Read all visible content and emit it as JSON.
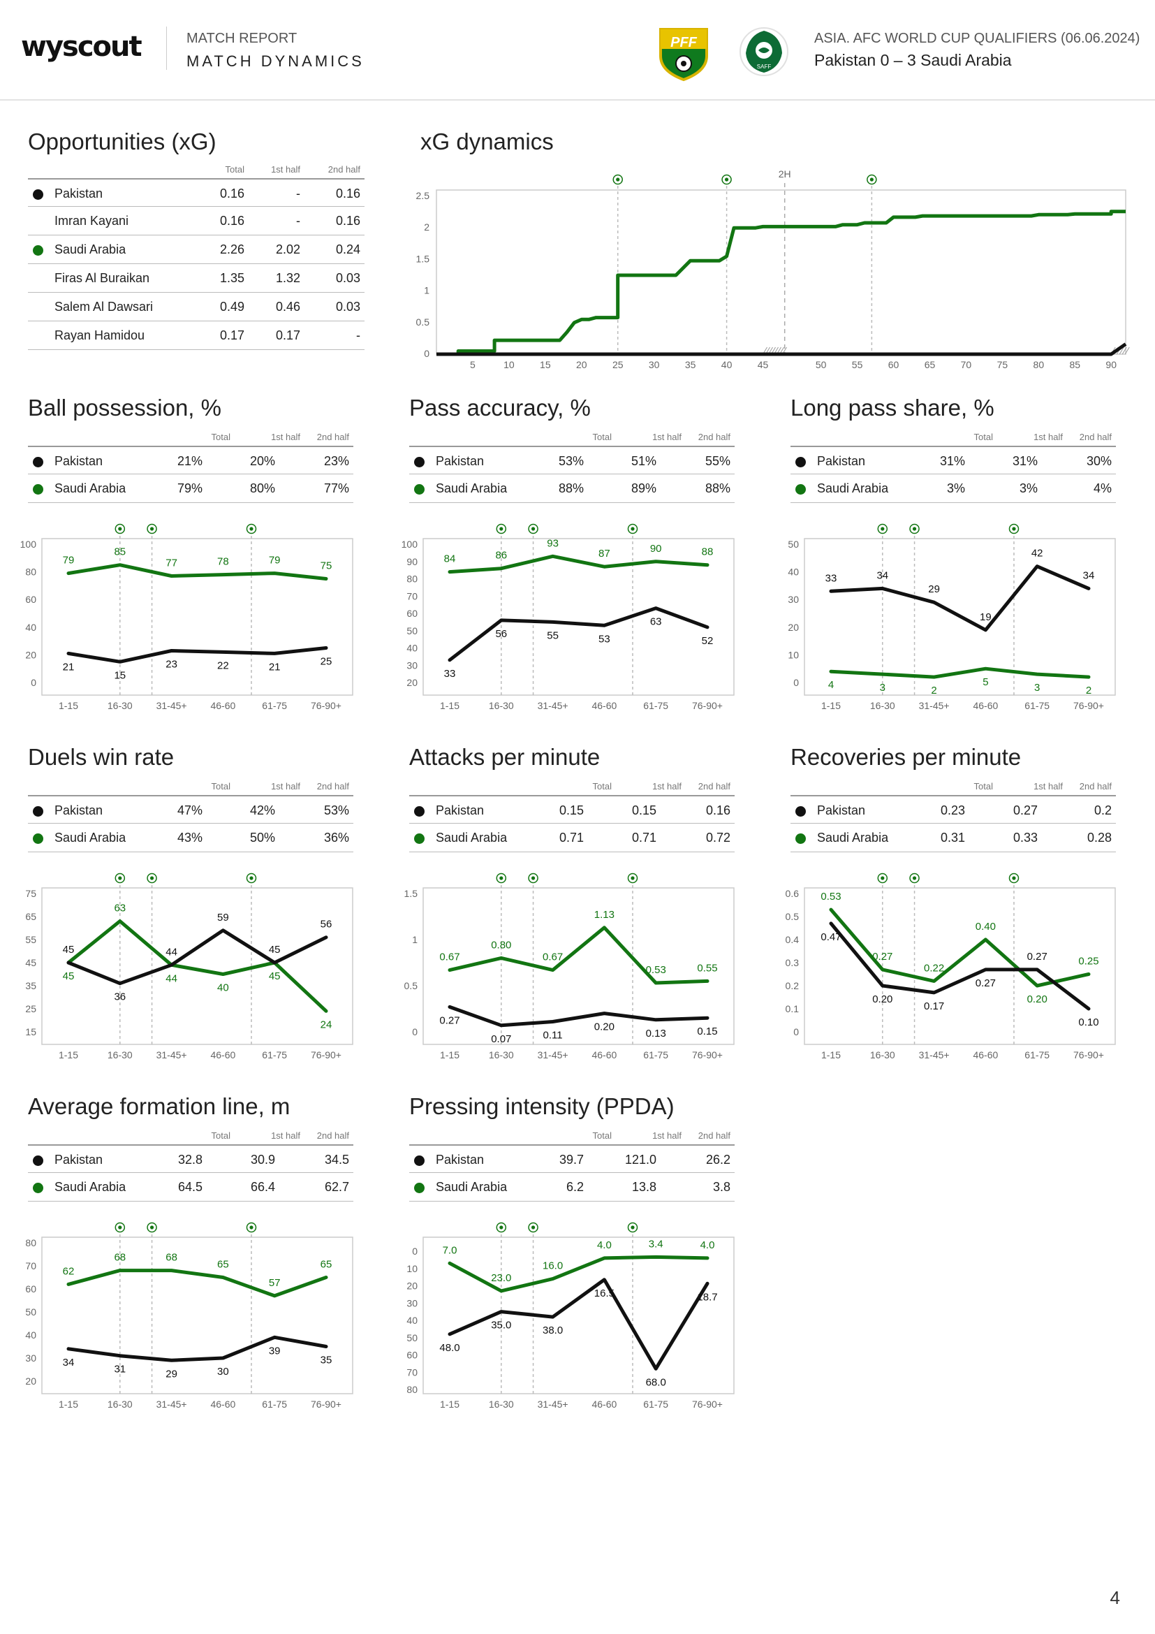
{
  "header": {
    "logo": "wyscout",
    "report_label": "MATCH REPORT",
    "report_title": "MATCH DYNAMICS",
    "competition": "ASIA. AFC WORLD CUP QUALIFIERS (06.06.2024)",
    "match": "Pakistan 0 – 3 Saudi Arabia",
    "home_crest_text": "PFF",
    "away_crest_text": "SAFF"
  },
  "colors": {
    "pakistan": "#111111",
    "saudi": "#127512",
    "grid": "#dddddd"
  },
  "page_number": "4",
  "columns": {
    "total": "Total",
    "first": "1st half",
    "second": "2nd half"
  },
  "xg_table": {
    "title": "Opportunities (xG)",
    "rows": [
      {
        "name": "Pakistan",
        "team": "pakistan",
        "total": "0.16",
        "first": "-",
        "second": "0.16"
      },
      {
        "name": "Imran Kayani",
        "team": "",
        "total": "0.16",
        "first": "-",
        "second": "0.16"
      },
      {
        "name": "Saudi Arabia",
        "team": "saudi",
        "total": "2.26",
        "first": "2.02",
        "second": "0.24"
      },
      {
        "name": "Firas Al Buraikan",
        "team": "",
        "total": "1.35",
        "first": "1.32",
        "second": "0.03"
      },
      {
        "name": "Salem Al Dawsari",
        "team": "",
        "total": "0.49",
        "first": "0.46",
        "second": "0.03"
      },
      {
        "name": "Rayan Hamidou",
        "team": "",
        "total": "0.17",
        "first": "0.17",
        "second": "-"
      }
    ]
  },
  "chart_data": [
    {
      "id": "xg_dynamics",
      "type": "line",
      "title": "xG dynamics",
      "half_marker": "2H",
      "y_ticks": [
        "0",
        "0.5",
        "1",
        "1.5",
        "2",
        "2.5"
      ],
      "ylim": [
        0,
        2.6
      ],
      "x_ticks_first": [
        "5",
        "10",
        "15",
        "20",
        "25",
        "30",
        "35",
        "40",
        "45"
      ],
      "x_ticks_second": [
        "50",
        "55",
        "60",
        "65",
        "70",
        "75",
        "80",
        "85",
        "90"
      ],
      "goal_minutes": [
        25,
        40,
        60
      ],
      "series": [
        {
          "name": "Saudi Arabia",
          "team": "saudi",
          "points": [
            [
              0,
              0
            ],
            [
              3,
              0
            ],
            [
              3,
              0.05
            ],
            [
              8,
              0.05
            ],
            [
              8,
              0.22
            ],
            [
              17,
              0.22
            ],
            [
              18,
              0.35
            ],
            [
              19,
              0.5
            ],
            [
              20,
              0.55
            ],
            [
              21,
              0.55
            ],
            [
              22,
              0.58
            ],
            [
              25,
              0.58
            ],
            [
              25,
              1.25
            ],
            [
              33,
              1.25
            ],
            [
              35,
              1.48
            ],
            [
              39,
              1.48
            ],
            [
              40,
              1.55
            ],
            [
              41,
              2.0
            ],
            [
              44,
              2.0
            ],
            [
              45,
              2.02
            ],
            [
              45,
              2.02
            ],
            [
              52,
              2.02
            ],
            [
              53,
              2.05
            ],
            [
              55,
              2.05
            ],
            [
              56,
              2.08
            ],
            [
              59,
              2.08
            ],
            [
              60,
              2.17
            ],
            [
              63,
              2.17
            ],
            [
              64,
              2.19
            ],
            [
              79,
              2.19
            ],
            [
              80,
              2.21
            ],
            [
              84,
              2.21
            ],
            [
              85,
              2.22
            ],
            [
              90,
              2.22
            ],
            [
              90,
              2.26
            ],
            [
              95,
              2.26
            ]
          ]
        },
        {
          "name": "Pakistan",
          "team": "pakistan",
          "points": [
            [
              0,
              0
            ],
            [
              90,
              0
            ],
            [
              92,
              0.16
            ],
            [
              95,
              0.16
            ]
          ]
        }
      ]
    },
    {
      "id": "possession",
      "type": "line",
      "title": "Ball possession, %",
      "categories": [
        "1-15",
        "16-30",
        "31-45+",
        "46-60",
        "61-75",
        "76-90+"
      ],
      "ylim": [
        0,
        100
      ],
      "y_ticks": [
        "0",
        "20",
        "40",
        "60",
        "80",
        "100"
      ],
      "goal_after": [
        1,
        2,
        4
      ],
      "series": [
        {
          "name": "Saudi Arabia",
          "team": "saudi",
          "values": [
            79,
            85,
            77,
            78,
            79,
            75
          ],
          "labels": [
            "79",
            "85",
            "77",
            "78",
            "79",
            "75"
          ],
          "label_pos": "above"
        },
        {
          "name": "Pakistan",
          "team": "pakistan",
          "values": [
            21,
            15,
            23,
            22,
            21,
            25
          ],
          "labels": [
            "21",
            "15",
            "23",
            "22",
            "21",
            "25"
          ],
          "label_pos": "below"
        }
      ]
    },
    {
      "id": "pass_accuracy",
      "type": "line",
      "title": "Pass accuracy, %",
      "categories": [
        "1-15",
        "16-30",
        "31-45+",
        "46-60",
        "61-75",
        "76-90+"
      ],
      "ylim": [
        20,
        100
      ],
      "y_ticks": [
        "20",
        "30",
        "40",
        "50",
        "60",
        "70",
        "80",
        "90",
        "100"
      ],
      "goal_after": [
        1,
        2,
        4
      ],
      "series": [
        {
          "name": "Saudi Arabia",
          "team": "saudi",
          "values": [
            84,
            86,
            93,
            87,
            90,
            88
          ],
          "labels": [
            "84",
            "86",
            "93",
            "87",
            "90",
            "88"
          ],
          "label_pos": "above"
        },
        {
          "name": "Pakistan",
          "team": "pakistan",
          "values": [
            33,
            56,
            55,
            53,
            63,
            52
          ],
          "labels": [
            "33",
            "56",
            "55",
            "53",
            "63",
            "52"
          ],
          "label_pos": "below"
        }
      ]
    },
    {
      "id": "long_pass",
      "type": "line",
      "title": "Long pass share, %",
      "categories": [
        "1-15",
        "16-30",
        "31-45+",
        "46-60",
        "61-75",
        "76-90+"
      ],
      "ylim": [
        0,
        50
      ],
      "y_ticks": [
        "0",
        "10",
        "20",
        "30",
        "40",
        "50"
      ],
      "goal_after": [
        1,
        2,
        4
      ],
      "series": [
        {
          "name": "Pakistan",
          "team": "pakistan",
          "values": [
            33,
            34,
            29,
            19,
            42,
            34
          ],
          "labels": [
            "33",
            "34",
            "29",
            "19",
            "42",
            "34"
          ],
          "label_pos": "above"
        },
        {
          "name": "Saudi Arabia",
          "team": "saudi",
          "values": [
            4,
            3,
            2,
            5,
            3,
            2
          ],
          "labels": [
            "4",
            "3",
            "2",
            "5",
            "3",
            "2"
          ],
          "label_pos": "below"
        }
      ]
    },
    {
      "id": "duels",
      "type": "line",
      "title": "Duels win rate",
      "categories": [
        "1-15",
        "16-30",
        "31-45+",
        "46-60",
        "61-75",
        "76-90+"
      ],
      "ylim": [
        15,
        75
      ],
      "y_ticks": [
        "15",
        "25",
        "35",
        "45",
        "55",
        "65",
        "75"
      ],
      "goal_after": [
        1,
        2,
        4
      ],
      "series": [
        {
          "name": "Saudi Arabia",
          "team": "saudi",
          "values": [
            45,
            63,
            44,
            40,
            45,
            24
          ],
          "labels": [
            "45",
            "63",
            "44",
            "40",
            "45",
            "24"
          ],
          "label_pos": "custom",
          "label_dirs": [
            "below",
            "above",
            "below",
            "below",
            "below",
            "below"
          ]
        },
        {
          "name": "Pakistan",
          "team": "pakistan",
          "values": [
            45,
            36,
            44,
            59,
            45,
            56
          ],
          "labels": [
            "45",
            "36",
            "44",
            "59",
            "45",
            "56"
          ],
          "label_pos": "custom",
          "label_dirs": [
            "above",
            "below",
            "above",
            "above",
            "above",
            "above"
          ]
        }
      ]
    },
    {
      "id": "attacks",
      "type": "line",
      "title": "Attacks per minute",
      "categories": [
        "1-15",
        "16-30",
        "31-45+",
        "46-60",
        "61-75",
        "76-90+"
      ],
      "ylim": [
        0,
        1.5
      ],
      "y_ticks": [
        "0",
        "0.5",
        "1",
        "1.5"
      ],
      "goal_after": [
        1,
        2,
        4
      ],
      "series": [
        {
          "name": "Saudi Arabia",
          "team": "saudi",
          "values": [
            0.67,
            0.8,
            0.67,
            1.13,
            0.53,
            0.55
          ],
          "labels": [
            "0.67",
            "0.80",
            "0.67",
            "1.13",
            "0.53",
            "0.55"
          ],
          "label_pos": "above"
        },
        {
          "name": "Pakistan",
          "team": "pakistan",
          "values": [
            0.27,
            0.07,
            0.11,
            0.2,
            0.13,
            0.15
          ],
          "labels": [
            "0.27",
            "0.07",
            "0.11",
            "0.20",
            "0.13",
            "0.15"
          ],
          "label_pos": "below"
        }
      ]
    },
    {
      "id": "recoveries",
      "type": "line",
      "title": "Recoveries per minute",
      "categories": [
        "1-15",
        "16-30",
        "31-45+",
        "46-60",
        "61-75",
        "76-90+"
      ],
      "ylim": [
        0,
        0.6
      ],
      "y_ticks": [
        "0",
        "0.1",
        "0.2",
        "0.3",
        "0.4",
        "0.5",
        "0.6"
      ],
      "goal_after": [
        1,
        2,
        4
      ],
      "series": [
        {
          "name": "Saudi Arabia",
          "team": "saudi",
          "values": [
            0.53,
            0.27,
            0.22,
            0.4,
            0.2,
            0.25
          ],
          "labels": [
            "0.53",
            "0.27",
            "0.22",
            "0.40",
            "0.20",
            "0.25"
          ],
          "label_pos": "custom",
          "label_dirs": [
            "above",
            "above",
            "above",
            "above",
            "below",
            "above"
          ]
        },
        {
          "name": "Pakistan",
          "team": "pakistan",
          "values": [
            0.47,
            0.2,
            0.17,
            0.27,
            0.27,
            0.1
          ],
          "labels": [
            "0.47",
            "0.20",
            "0.17",
            "0.27",
            "0.27",
            "0.10"
          ],
          "label_pos": "custom",
          "label_dirs": [
            "below",
            "below",
            "below",
            "below",
            "above",
            "below"
          ]
        }
      ]
    },
    {
      "id": "formation",
      "type": "line",
      "title": "Average formation line, m",
      "categories": [
        "1-15",
        "16-30",
        "31-45+",
        "46-60",
        "61-75",
        "76-90+"
      ],
      "ylim": [
        20,
        80
      ],
      "y_ticks": [
        "20",
        "30",
        "40",
        "50",
        "60",
        "70",
        "80"
      ],
      "goal_after": [
        1,
        2,
        4
      ],
      "series": [
        {
          "name": "Saudi Arabia",
          "team": "saudi",
          "values": [
            62,
            68,
            68,
            65,
            57,
            65
          ],
          "labels": [
            "62",
            "68",
            "68",
            "65",
            "57",
            "65"
          ],
          "label_pos": "above"
        },
        {
          "name": "Pakistan",
          "team": "pakistan",
          "values": [
            34,
            31,
            29,
            30,
            39,
            35
          ],
          "labels": [
            "34",
            "31",
            "29",
            "30",
            "39",
            "35"
          ],
          "label_pos": "below"
        }
      ]
    },
    {
      "id": "ppda",
      "type": "line",
      "title": "Pressing intensity (PPDA)",
      "inverted": true,
      "categories": [
        "1-15",
        "16-30",
        "31-45+",
        "46-60",
        "61-75",
        "76-90+"
      ],
      "ylim": [
        0,
        80
      ],
      "y_ticks": [
        "0",
        "10",
        "20",
        "30",
        "40",
        "50",
        "60",
        "70",
        "80"
      ],
      "goal_after": [
        1,
        2,
        4
      ],
      "series": [
        {
          "name": "Saudi Arabia",
          "team": "saudi",
          "values": [
            7.0,
            23.0,
            16.0,
            4.0,
            3.4,
            4.0
          ],
          "labels": [
            "7.0",
            "23.0",
            "16.0",
            "4.0",
            "3.4",
            "4.0"
          ],
          "label_pos": "above"
        },
        {
          "name": "Pakistan",
          "team": "pakistan",
          "values": [
            48.0,
            35.0,
            38.0,
            16.5,
            68.0,
            18.7
          ],
          "labels": [
            "48.0",
            "35.0",
            "38.0",
            "16.5",
            "68.0",
            "18.7"
          ],
          "label_pos": "below"
        }
      ]
    }
  ],
  "summaries": [
    {
      "id": "possession",
      "rows": [
        {
          "name": "Pakistan",
          "team": "pakistan",
          "total": "21%",
          "first": "20%",
          "second": "23%"
        },
        {
          "name": "Saudi Arabia",
          "team": "saudi",
          "total": "79%",
          "first": "80%",
          "second": "77%"
        }
      ]
    },
    {
      "id": "pass_accuracy",
      "rows": [
        {
          "name": "Pakistan",
          "team": "pakistan",
          "total": "53%",
          "first": "51%",
          "second": "55%"
        },
        {
          "name": "Saudi Arabia",
          "team": "saudi",
          "total": "88%",
          "first": "89%",
          "second": "88%"
        }
      ]
    },
    {
      "id": "long_pass",
      "rows": [
        {
          "name": "Pakistan",
          "team": "pakistan",
          "total": "31%",
          "first": "31%",
          "second": "30%"
        },
        {
          "name": "Saudi Arabia",
          "team": "saudi",
          "total": "3%",
          "first": "3%",
          "second": "4%"
        }
      ]
    },
    {
      "id": "duels",
      "rows": [
        {
          "name": "Pakistan",
          "team": "pakistan",
          "total": "47%",
          "first": "42%",
          "second": "53%"
        },
        {
          "name": "Saudi Arabia",
          "team": "saudi",
          "total": "43%",
          "first": "50%",
          "second": "36%"
        }
      ]
    },
    {
      "id": "attacks",
      "rows": [
        {
          "name": "Pakistan",
          "team": "pakistan",
          "total": "0.15",
          "first": "0.15",
          "second": "0.16"
        },
        {
          "name": "Saudi Arabia",
          "team": "saudi",
          "total": "0.71",
          "first": "0.71",
          "second": "0.72"
        }
      ]
    },
    {
      "id": "recoveries",
      "rows": [
        {
          "name": "Pakistan",
          "team": "pakistan",
          "total": "0.23",
          "first": "0.27",
          "second": "0.2"
        },
        {
          "name": "Saudi Arabia",
          "team": "saudi",
          "total": "0.31",
          "first": "0.33",
          "second": "0.28"
        }
      ]
    },
    {
      "id": "formation",
      "rows": [
        {
          "name": "Pakistan",
          "team": "pakistan",
          "total": "32.8",
          "first": "30.9",
          "second": "34.5"
        },
        {
          "name": "Saudi Arabia",
          "team": "saudi",
          "total": "64.5",
          "first": "66.4",
          "second": "62.7"
        }
      ]
    },
    {
      "id": "ppda",
      "rows": [
        {
          "name": "Pakistan",
          "team": "pakistan",
          "total": "39.7",
          "first": "121.0",
          "second": "26.2"
        },
        {
          "name": "Saudi Arabia",
          "team": "saudi",
          "total": "6.2",
          "first": "13.8",
          "second": "3.8"
        }
      ]
    }
  ]
}
